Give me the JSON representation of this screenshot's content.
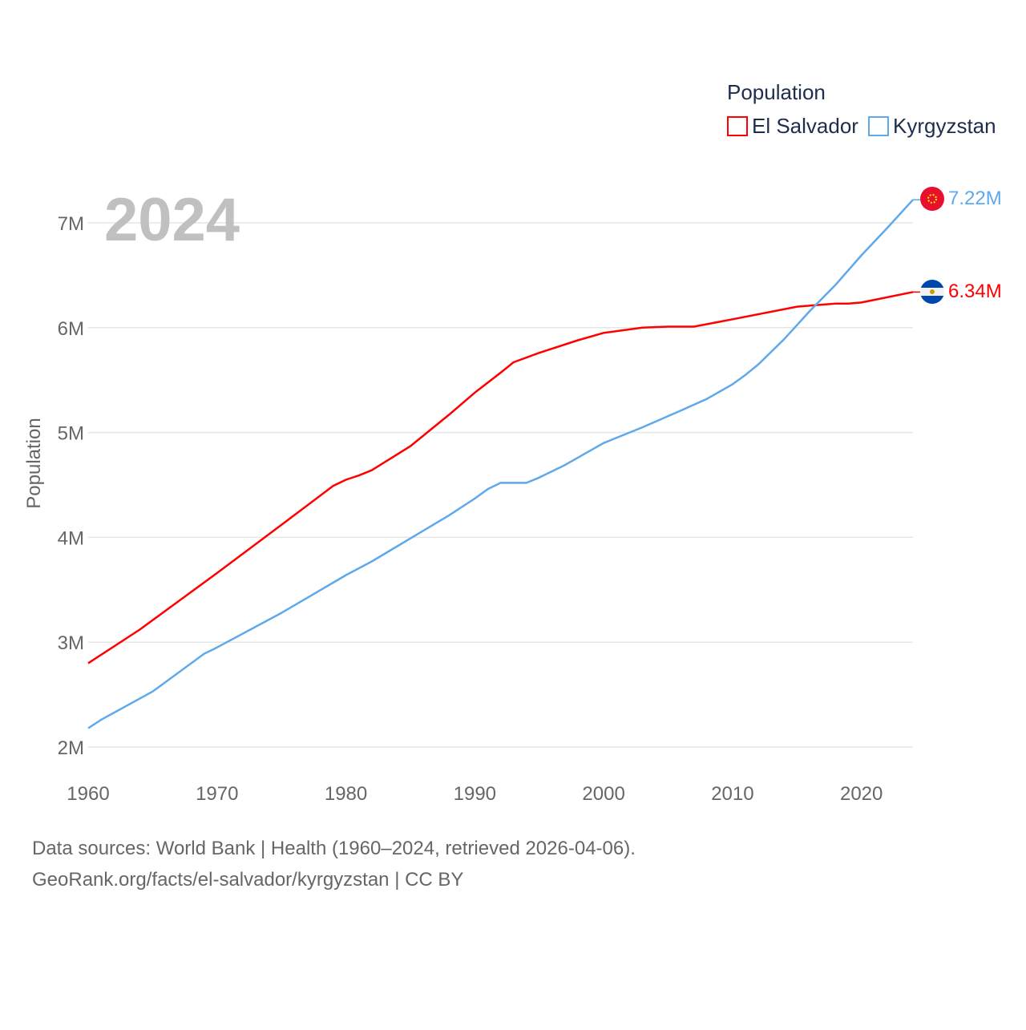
{
  "chart_data": {
    "type": "line",
    "ylabel": "Population",
    "year_label": "2024",
    "xlim": [
      1960,
      2024
    ],
    "ylim": [
      2,
      7
    ],
    "x_ticks": [
      1960,
      1970,
      1980,
      1990,
      2000,
      2010,
      2020
    ],
    "y_ticks": [
      {
        "v": 2,
        "label": "2M"
      },
      {
        "v": 3,
        "label": "3M"
      },
      {
        "v": 4,
        "label": "4M"
      },
      {
        "v": 5,
        "label": "5M"
      },
      {
        "v": 6,
        "label": "6M"
      },
      {
        "v": 7,
        "label": "7M"
      }
    ],
    "legend_title": "Population",
    "legend_position": "top-right",
    "grid": true,
    "series": [
      {
        "name": "El Salvador",
        "color": "#ff0000",
        "end_label": "6.34M",
        "x": [
          1960,
          1964,
          1970,
          1975,
          1979,
          1980,
          1981,
          1982,
          1985,
          1988,
          1990,
          1992,
          1993,
          1995,
          1998,
          2000,
          2003,
          2005,
          2006,
          2007,
          2010,
          2015,
          2018,
          2019,
          2020,
          2022,
          2024
        ],
        "y": [
          2.8,
          3.12,
          3.66,
          4.12,
          4.49,
          4.55,
          4.59,
          4.64,
          4.87,
          5.17,
          5.38,
          5.57,
          5.67,
          5.76,
          5.88,
          5.95,
          6.0,
          6.01,
          6.01,
          6.01,
          6.08,
          6.2,
          6.23,
          6.23,
          6.24,
          6.29,
          6.34
        ]
      },
      {
        "name": "Kyrgyzstan",
        "color": "#5fa8ec",
        "end_label": "7.22M",
        "x": [
          1960,
          1961,
          1965,
          1969,
          1970,
          1975,
          1980,
          1982,
          1985,
          1988,
          1990,
          1991,
          1992,
          1994,
          1995,
          1997,
          1999,
          2000,
          2003,
          2006,
          2008,
          2010,
          2011,
          2012,
          2014,
          2016,
          2018,
          2020,
          2022,
          2024
        ],
        "y": [
          2.18,
          2.26,
          2.53,
          2.89,
          2.95,
          3.28,
          3.64,
          3.77,
          3.99,
          4.21,
          4.37,
          4.46,
          4.52,
          4.52,
          4.57,
          4.69,
          4.83,
          4.9,
          5.05,
          5.21,
          5.32,
          5.46,
          5.55,
          5.65,
          5.89,
          6.16,
          6.41,
          6.69,
          6.95,
          7.22
        ]
      }
    ]
  },
  "footer": {
    "line1": "Data sources: World Bank | Health (1960–2024, retrieved 2026-04-06).",
    "line2": "GeoRank.org/facts/el-salvador/kyrgyzstan | CC BY"
  }
}
